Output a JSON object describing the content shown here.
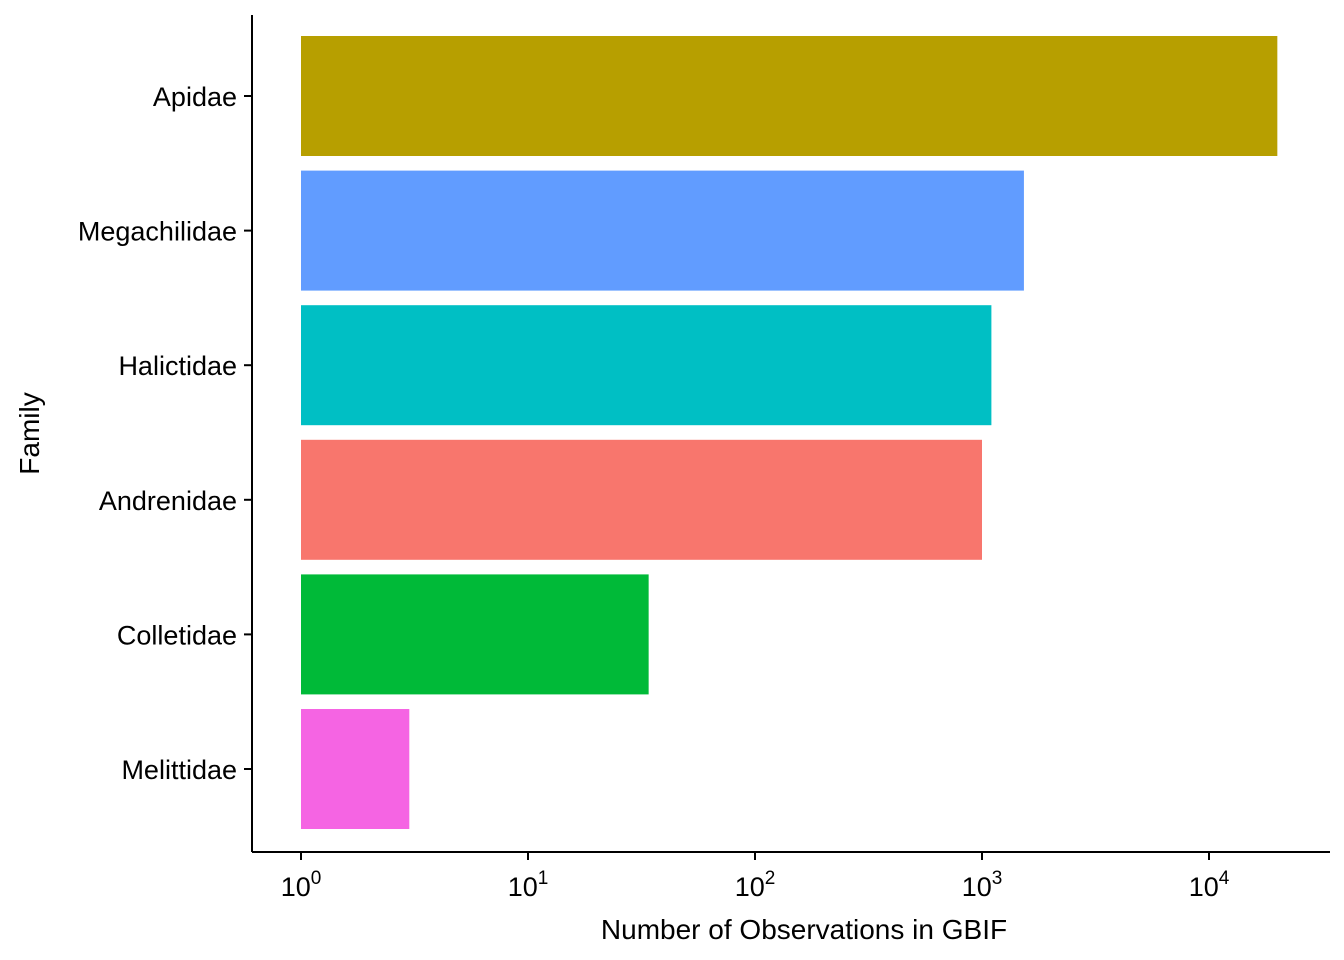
{
  "chart_data": {
    "type": "bar",
    "orientation": "horizontal",
    "categories": [
      "Apidae",
      "Megachilidae",
      "Halictidae",
      "Andrenidae",
      "Colletidae",
      "Melittidae"
    ],
    "values": [
      20000,
      1530,
      1100,
      1000,
      34,
      3
    ],
    "colors": [
      "#B79F00",
      "#619CFF",
      "#00BFC4",
      "#F8766D",
      "#00BA38",
      "#F564E3"
    ],
    "xlabel": "Number of Observations in GBIF",
    "ylabel": "Family",
    "xscale": "log10",
    "xlim": [
      0.8,
      30000
    ],
    "bar_base": 1,
    "xticks": [
      {
        "base": "10",
        "exp": "0",
        "value": 1
      },
      {
        "base": "10",
        "exp": "1",
        "value": 10
      },
      {
        "base": "10",
        "exp": "2",
        "value": 100
      },
      {
        "base": "10",
        "exp": "3",
        "value": 1000
      },
      {
        "base": "10",
        "exp": "4",
        "value": 10000
      }
    ],
    "grid": false,
    "legend": "none"
  }
}
